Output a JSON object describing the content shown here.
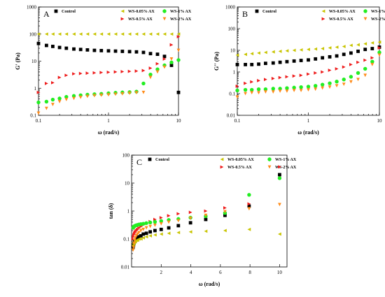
{
  "figure": {
    "panels": [
      "A",
      "B",
      "C"
    ]
  },
  "legend_labels": {
    "control": "Control",
    "ws005": "WS-0.05% AX",
    "ws05": "WS-0.5% AX",
    "ws1": "WS-1% AX",
    "ws2": "WS-2% AX"
  },
  "colors": {
    "control": "#000000",
    "ws005": "#c8c400",
    "ws05": "#ee1c1c",
    "ws1": "#22ee22",
    "ws2": "#ff8c1a"
  },
  "markers": {
    "control": "square",
    "ws005": "triangle-left",
    "ws05": "triangle-right",
    "ws1": "circle",
    "ws2": "triangle-down"
  },
  "chart_data": [
    {
      "panel_label": "A",
      "type": "scatter",
      "xscale": "log",
      "yscale": "log",
      "xlim": [
        0.1,
        10
      ],
      "ylim": [
        0.1,
        1000
      ],
      "xlabel": "ω (rad/s)",
      "ylabel": "G' (Pa)",
      "x_ticks": [
        "0.1",
        "1",
        "10"
      ],
      "y_ticks": [
        "0.1",
        "1",
        "10",
        "100",
        "1000"
      ],
      "series": [
        {
          "name": "Control",
          "key": "control",
          "x": [
            0.1,
            0.13,
            0.16,
            0.2,
            0.25,
            0.32,
            0.4,
            0.5,
            0.63,
            0.79,
            1.0,
            1.26,
            1.58,
            2.0,
            2.51,
            3.16,
            3.98,
            5.01,
            6.31,
            7.94,
            10.0
          ],
          "y": [
            45,
            38,
            35,
            32,
            30,
            28,
            27,
            26,
            25,
            24.5,
            24,
            23.5,
            23,
            22.5,
            22,
            21,
            19,
            18,
            15,
            7,
            0.7
          ]
        },
        {
          "name": "WS-0.05% AX",
          "key": "ws005",
          "x": [
            0.1,
            0.13,
            0.16,
            0.2,
            0.25,
            0.32,
            0.4,
            0.5,
            0.63,
            0.79,
            1.0,
            1.26,
            1.58,
            2.0,
            2.51,
            3.16,
            3.98,
            5.01,
            6.31,
            7.94,
            10.0
          ],
          "y": [
            100,
            100,
            100,
            100,
            100,
            100,
            100,
            100,
            100,
            100,
            100,
            100,
            100,
            100,
            100,
            100,
            100,
            100,
            100,
            100,
            100
          ]
        },
        {
          "name": "WS-0.5% AX",
          "key": "ws05",
          "x": [
            0.1,
            0.13,
            0.16,
            0.2,
            0.25,
            0.32,
            0.4,
            0.5,
            0.63,
            0.79,
            1.0,
            1.26,
            1.58,
            2.0,
            2.51,
            3.16,
            3.98,
            5.01,
            6.31,
            7.94,
            10.0
          ],
          "y": [
            0.7,
            1.5,
            1.6,
            2.5,
            3.0,
            3.4,
            3.5,
            3.6,
            3.7,
            3.8,
            3.9,
            4.0,
            4.1,
            4.2,
            4.3,
            4.5,
            5.5,
            8,
            12,
            40,
            80
          ]
        },
        {
          "name": "WS-1% AX",
          "key": "ws1",
          "x": [
            0.1,
            0.13,
            0.16,
            0.2,
            0.25,
            0.32,
            0.4,
            0.5,
            0.63,
            0.79,
            1.0,
            1.26,
            1.58,
            2.0,
            2.51,
            3.16,
            3.98,
            5.01,
            6.31,
            7.94,
            10.0
          ],
          "y": [
            0.3,
            0.32,
            0.38,
            0.42,
            0.48,
            0.52,
            0.55,
            0.58,
            0.6,
            0.62,
            0.65,
            0.68,
            0.7,
            0.72,
            0.75,
            1.5,
            3.2,
            5,
            7,
            9,
            11
          ]
        },
        {
          "name": "WS-2% AX",
          "key": "ws2",
          "x": [
            0.1,
            0.13,
            0.16,
            0.2,
            0.25,
            0.32,
            0.4,
            0.5,
            0.63,
            0.79,
            1.0,
            1.26,
            1.58,
            2.0,
            2.51,
            3.16,
            3.98,
            5.01,
            6.31,
            7.94,
            10.0
          ],
          "y": [
            0.12,
            0.18,
            0.25,
            0.32,
            0.38,
            0.42,
            0.46,
            0.5,
            0.53,
            0.55,
            0.57,
            0.6,
            0.62,
            0.65,
            0.68,
            0.7,
            2.5,
            4,
            6,
            12,
            25
          ]
        }
      ]
    },
    {
      "panel_label": "B",
      "type": "scatter",
      "xscale": "log",
      "yscale": "log",
      "xlim": [
        0.1,
        10
      ],
      "ylim": [
        0.01,
        1000
      ],
      "xlabel": "ω (rad/s)",
      "ylabel": "G'' (Pa)",
      "x_ticks": [
        "0.1",
        "1",
        "10"
      ],
      "y_ticks": [
        "0.01",
        "0.1",
        "1",
        "10",
        "100",
        "1000"
      ],
      "series": [
        {
          "name": "Control",
          "key": "control",
          "x": [
            0.1,
            0.13,
            0.16,
            0.2,
            0.25,
            0.32,
            0.4,
            0.5,
            0.63,
            0.79,
            1.0,
            1.26,
            1.58,
            2.0,
            2.51,
            3.16,
            3.98,
            5.01,
            6.31,
            7.94,
            10.0
          ],
          "y": [
            2.2,
            2.2,
            2.2,
            2.3,
            2.5,
            2.6,
            2.8,
            3.0,
            3.2,
            3.4,
            3.6,
            4.0,
            4.5,
            5.0,
            5.5,
            6.5,
            7.5,
            9,
            11,
            12,
            14
          ]
        },
        {
          "name": "WS-0.05% AX",
          "key": "ws005",
          "x": [
            0.1,
            0.13,
            0.16,
            0.2,
            0.25,
            0.32,
            0.4,
            0.5,
            0.63,
            0.79,
            1.0,
            1.26,
            1.58,
            2.0,
            2.51,
            3.16,
            3.98,
            5.01,
            6.31,
            7.94,
            10.0
          ],
          "y": [
            6.0,
            6.5,
            7.0,
            7.5,
            8.0,
            8.5,
            9.0,
            9.5,
            10,
            10.5,
            11,
            11.5,
            12,
            13,
            14,
            15,
            17,
            18,
            20,
            22,
            24
          ]
        },
        {
          "name": "WS-0.5% AX",
          "key": "ws05",
          "x": [
            0.1,
            0.13,
            0.16,
            0.2,
            0.25,
            0.32,
            0.4,
            0.5,
            0.63,
            0.79,
            1.0,
            1.26,
            1.58,
            2.0,
            2.51,
            3.16,
            3.98,
            5.01,
            6.31,
            7.94,
            10.0
          ],
          "y": [
            0.22,
            0.3,
            0.35,
            0.4,
            0.45,
            0.5,
            0.55,
            0.6,
            0.65,
            0.7,
            0.8,
            0.9,
            1.0,
            1.2,
            1.4,
            1.7,
            2.2,
            2.8,
            3.5,
            4.5,
            13
          ]
        },
        {
          "name": "WS-1% AX",
          "key": "ws1",
          "x": [
            0.1,
            0.13,
            0.16,
            0.2,
            0.25,
            0.32,
            0.4,
            0.5,
            0.63,
            0.79,
            1.0,
            1.26,
            1.58,
            2.0,
            2.51,
            3.16,
            3.98,
            5.01,
            6.31,
            7.94,
            10.0
          ],
          "y": [
            0.14,
            0.15,
            0.15,
            0.16,
            0.16,
            0.17,
            0.17,
            0.18,
            0.19,
            0.2,
            0.21,
            0.23,
            0.26,
            0.3,
            0.36,
            0.45,
            0.6,
            0.9,
            1.4,
            3,
            8
          ]
        },
        {
          "name": "WS-2% AX",
          "key": "ws2",
          "x": [
            0.1,
            0.13,
            0.16,
            0.2,
            0.25,
            0.32,
            0.4,
            0.5,
            0.63,
            0.79,
            1.0,
            1.26,
            1.58,
            2.0,
            2.51,
            3.16,
            3.98,
            5.01,
            6.31,
            7.94,
            10.0
          ],
          "y": [
            0.07,
            0.1,
            0.11,
            0.11,
            0.12,
            0.12,
            0.13,
            0.13,
            0.14,
            0.14,
            0.15,
            0.16,
            0.18,
            0.2,
            0.23,
            0.27,
            0.35,
            0.45,
            0.7,
            2.2,
            6
          ]
        }
      ]
    },
    {
      "panel_label": "C",
      "type": "scatter",
      "xscale": "linear",
      "yscale": "log",
      "xlim": [
        0,
        10.5
      ],
      "ylim": [
        0.01,
        100
      ],
      "xlabel": "ω (rad/s)",
      "ylabel": "tan (δ)",
      "x_ticks": [
        "2",
        "4",
        "6",
        "8",
        "10"
      ],
      "y_ticks": [
        "0.01",
        "0.1",
        "1",
        "10",
        "100"
      ],
      "series": [
        {
          "name": "Control",
          "key": "control",
          "x": [
            0.1,
            0.13,
            0.16,
            0.2,
            0.25,
            0.32,
            0.4,
            0.5,
            0.63,
            0.79,
            1.0,
            1.26,
            1.58,
            2.0,
            2.51,
            3.16,
            3.98,
            5.01,
            6.31,
            7.94,
            10.0
          ],
          "y": [
            0.05,
            0.06,
            0.07,
            0.08,
            0.09,
            0.1,
            0.11,
            0.12,
            0.13,
            0.15,
            0.16,
            0.18,
            0.2,
            0.22,
            0.25,
            0.3,
            0.38,
            0.5,
            0.7,
            1.5,
            20
          ]
        },
        {
          "name": "WS-0.05% AX",
          "key": "ws005",
          "x": [
            0.1,
            0.13,
            0.16,
            0.2,
            0.25,
            0.32,
            0.4,
            0.5,
            0.63,
            0.79,
            1.0,
            1.26,
            1.58,
            2.0,
            2.51,
            3.16,
            3.98,
            5.01,
            6.31,
            7.94,
            10.0
          ],
          "y": [
            0.06,
            0.07,
            0.07,
            0.08,
            0.08,
            0.09,
            0.09,
            0.1,
            0.1,
            0.11,
            0.12,
            0.13,
            0.14,
            0.15,
            0.16,
            0.17,
            0.18,
            0.19,
            0.2,
            0.22,
            0.15
          ]
        },
        {
          "name": "WS-0.5% AX",
          "key": "ws05",
          "x": [
            0.1,
            0.13,
            0.16,
            0.2,
            0.25,
            0.32,
            0.4,
            0.5,
            0.63,
            0.79,
            1.0,
            1.26,
            1.58,
            2.0,
            2.51,
            3.16,
            3.98,
            5.01,
            6.31,
            7.94,
            10.0
          ],
          "y": [
            0.1,
            0.12,
            0.14,
            0.16,
            0.18,
            0.2,
            0.22,
            0.25,
            0.28,
            0.32,
            0.36,
            0.42,
            0.5,
            0.58,
            0.68,
            0.8,
            0.9,
            1.0,
            1.3,
            1.8,
            38
          ]
        },
        {
          "name": "WS-1% AX",
          "key": "ws1",
          "x": [
            0.1,
            0.13,
            0.16,
            0.2,
            0.25,
            0.32,
            0.4,
            0.5,
            0.63,
            0.79,
            1.0,
            1.26,
            1.58,
            2.0,
            2.51,
            3.16,
            3.98,
            5.01,
            6.31,
            7.94,
            10.0
          ],
          "y": [
            0.25,
            0.27,
            0.28,
            0.29,
            0.3,
            0.31,
            0.32,
            0.33,
            0.34,
            0.35,
            0.37,
            0.39,
            0.41,
            0.44,
            0.48,
            0.52,
            0.58,
            0.65,
            0.85,
            3.8,
            15
          ]
        },
        {
          "name": "WS-2% AX",
          "key": "ws2",
          "x": [
            0.1,
            0.13,
            0.16,
            0.2,
            0.25,
            0.32,
            0.4,
            0.5,
            0.63,
            0.79,
            1.0,
            1.26,
            1.58,
            2.0,
            2.51,
            3.16,
            3.98,
            5.01,
            6.31,
            7.94,
            10.0
          ],
          "y": [
            0.04,
            0.05,
            0.07,
            0.09,
            0.11,
            0.13,
            0.15,
            0.17,
            0.2,
            0.22,
            0.25,
            0.28,
            0.31,
            0.35,
            0.4,
            0.45,
            0.55,
            0.7,
            0.95,
            1.2,
            1.7
          ]
        }
      ]
    }
  ]
}
